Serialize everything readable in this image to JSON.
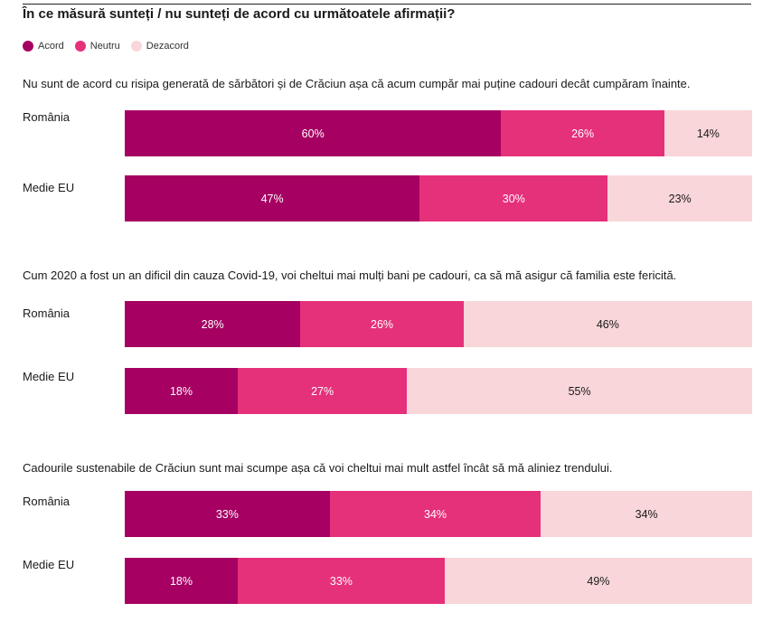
{
  "title": "În ce măsură sunteți / nu sunteți de acord cu următoatele afirmații?",
  "colors": {
    "agree": "#a50062",
    "neutral": "#e5307a",
    "disagree": "#f9d6d9"
  },
  "legend": [
    {
      "key": "agree",
      "label": "Acord"
    },
    {
      "key": "neutral",
      "label": "Neutru"
    },
    {
      "key": "disagree",
      "label": "Dezacord"
    }
  ],
  "chart_data": {
    "type": "bar",
    "orientation": "horizontal",
    "stacked": true,
    "normalized": true,
    "title": "În ce măsură sunteți / nu sunteți de acord cu următoatele afirmații?",
    "series_names": [
      "Acord",
      "Neutru",
      "Dezacord"
    ],
    "legend_position": "top-left",
    "groups": [
      {
        "question": "Nu sunt de acord cu risipa generată de sărbători și de Crăciun așa că acum cumpăr mai puține cadouri decât cumpăram înainte.",
        "rows": [
          {
            "label": "România",
            "values": [
              60,
              26,
              14
            ]
          },
          {
            "label": "Medie EU",
            "values": [
              47,
              30,
              23
            ]
          }
        ]
      },
      {
        "question": "Cum 2020 a fost un an dificil din cauza Covid-19, voi cheltui mai mulți bani pe cadouri, ca să mă asigur că familia este fericită.",
        "rows": [
          {
            "label": "România",
            "values": [
              28,
              26,
              46
            ]
          },
          {
            "label": "Medie EU",
            "values": [
              18,
              27,
              55
            ]
          }
        ]
      },
      {
        "question": "Cadourile sustenabile de Crăciun sunt mai scumpe așa că voi cheltui mai mult astfel încât să mă aliniez trendului.",
        "rows": [
          {
            "label": "România",
            "values": [
              33,
              34,
              34
            ]
          },
          {
            "label": "Medie EU",
            "values": [
              18,
              33,
              49
            ]
          }
        ]
      }
    ]
  }
}
